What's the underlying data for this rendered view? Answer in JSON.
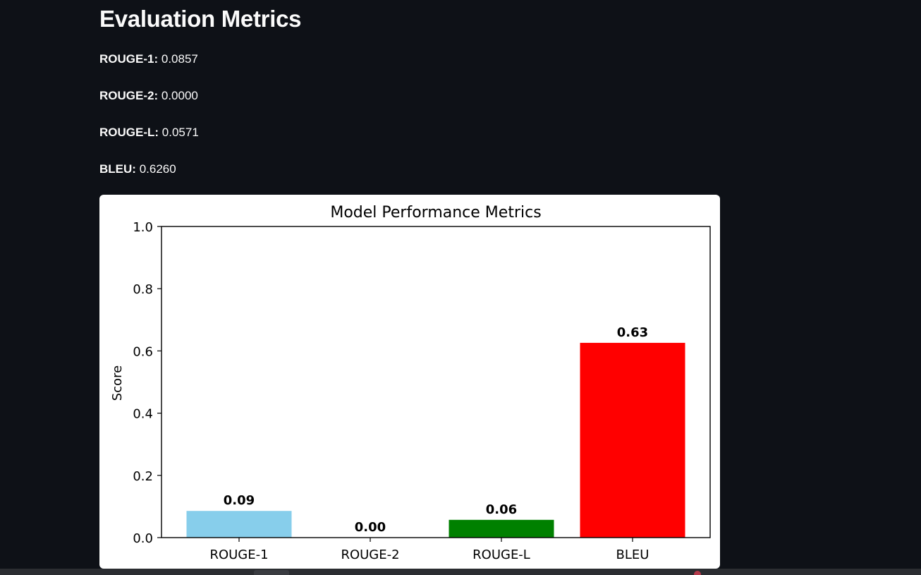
{
  "page": {
    "title": "Evaluation Metrics"
  },
  "metrics": [
    {
      "label": "ROUGE-1:",
      "value": "0.0857"
    },
    {
      "label": "ROUGE-2:",
      "value": "0.0000"
    },
    {
      "label": "ROUGE-L:",
      "value": "0.0571"
    },
    {
      "label": "BLEU:",
      "value": "0.6260"
    }
  ],
  "colors": {
    "background": "#0e1117",
    "text": "#fafafa",
    "card": "#ffffff"
  },
  "chart_data": {
    "type": "bar",
    "title": "Model Performance Metrics",
    "xlabel": "",
    "ylabel": "Score",
    "ylim": [
      0,
      1.0
    ],
    "yticks": [
      "0.0",
      "0.2",
      "0.4",
      "0.6",
      "0.8",
      "1.0"
    ],
    "categories": [
      "ROUGE-1",
      "ROUGE-2",
      "ROUGE-L",
      "BLEU"
    ],
    "values": [
      0.0857,
      0.0,
      0.0571,
      0.626
    ],
    "data_labels": [
      "0.09",
      "0.00",
      "0.06",
      "0.63"
    ],
    "colors": [
      "#87ceeb",
      "#ffa500",
      "#008000",
      "#ff0000"
    ],
    "grid": false,
    "legend": "none"
  }
}
